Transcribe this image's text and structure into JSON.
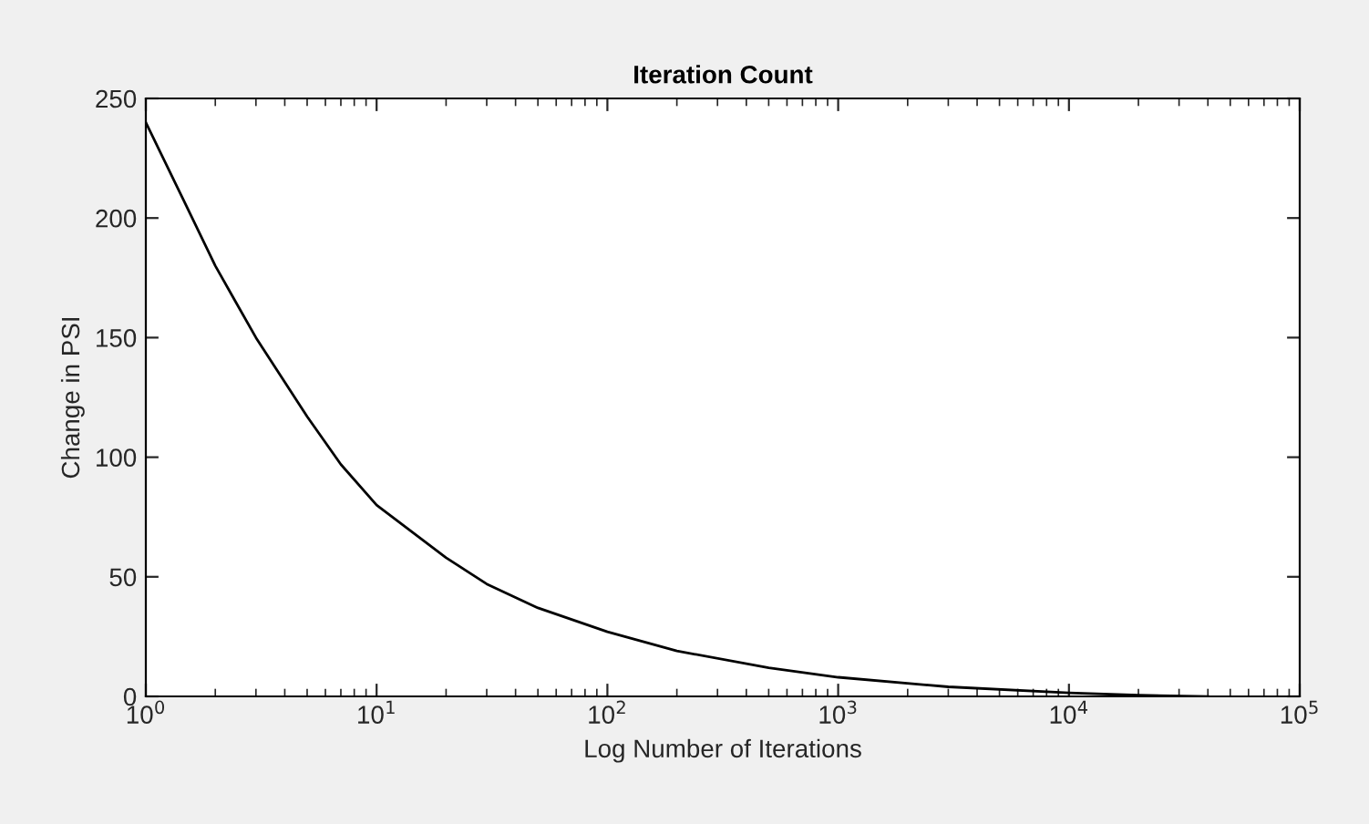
{
  "chart_data": {
    "type": "line",
    "title": "Iteration Count",
    "xlabel": "Log Number of Iterations",
    "ylabel": "Change in PSI",
    "log": "x",
    "grid": false,
    "legend": false,
    "marker": "none",
    "line_style": "solid",
    "xlim": [
      1,
      100000
    ],
    "ylim": [
      0,
      250
    ],
    "xticks": [
      {
        "value": 1,
        "label": "10$^{0}$"
      },
      {
        "value": 10,
        "label": "10$^{1}$"
      },
      {
        "value": 100,
        "label": "10$^{2}$"
      },
      {
        "value": 1000,
        "label": "10$^{3}$"
      },
      {
        "value": 10000,
        "label": "10$^{4}$"
      },
      {
        "value": 100000,
        "label": "10$^{5}$"
      }
    ],
    "yticks": [
      0,
      50,
      100,
      150,
      200,
      250
    ],
    "series": [
      {
        "color": "#000000",
        "x": [
          1,
          1.5,
          2,
          3,
          5,
          7,
          10,
          20,
          30,
          50,
          100,
          200,
          500,
          1000,
          3000,
          10000,
          20000,
          40000
        ],
        "values": [
          240,
          205,
          180,
          150,
          117,
          97,
          80,
          58,
          47,
          37,
          27,
          19,
          12,
          8,
          4,
          1.5,
          0.5,
          0
        ]
      }
    ]
  }
}
